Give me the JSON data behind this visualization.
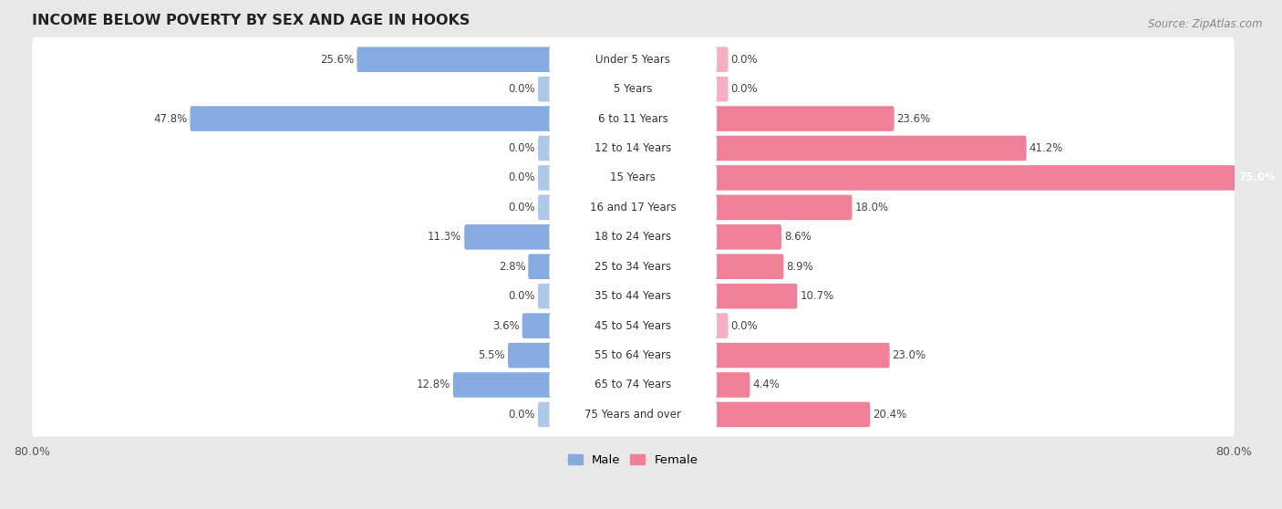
{
  "title": "INCOME BELOW POVERTY BY SEX AND AGE IN HOOKS",
  "source": "Source: ZipAtlas.com",
  "categories": [
    "Under 5 Years",
    "5 Years",
    "6 to 11 Years",
    "12 to 14 Years",
    "15 Years",
    "16 and 17 Years",
    "18 to 24 Years",
    "25 to 34 Years",
    "35 to 44 Years",
    "45 to 54 Years",
    "55 to 64 Years",
    "65 to 74 Years",
    "75 Years and over"
  ],
  "male": [
    25.6,
    0.0,
    47.8,
    0.0,
    0.0,
    0.0,
    11.3,
    2.8,
    0.0,
    3.6,
    5.5,
    12.8,
    0.0
  ],
  "female": [
    0.0,
    0.0,
    23.6,
    41.2,
    75.0,
    18.0,
    8.6,
    8.9,
    10.7,
    0.0,
    23.0,
    4.4,
    20.4
  ],
  "male_color": "#85abe0",
  "female_color": "#f08098",
  "male_color_light": "#adc8e8",
  "female_color_light": "#f4afc0",
  "male_label": "Male",
  "female_label": "Female",
  "axis_max": 80.0,
  "background_color": "#e8e8e8",
  "bar_background": "#ffffff",
  "row_bg_color": "#f5f5f5",
  "title_fontsize": 11.5,
  "label_fontsize": 8.5,
  "source_fontsize": 8.5,
  "legend_fontsize": 9.5,
  "axis_label_fontsize": 9
}
